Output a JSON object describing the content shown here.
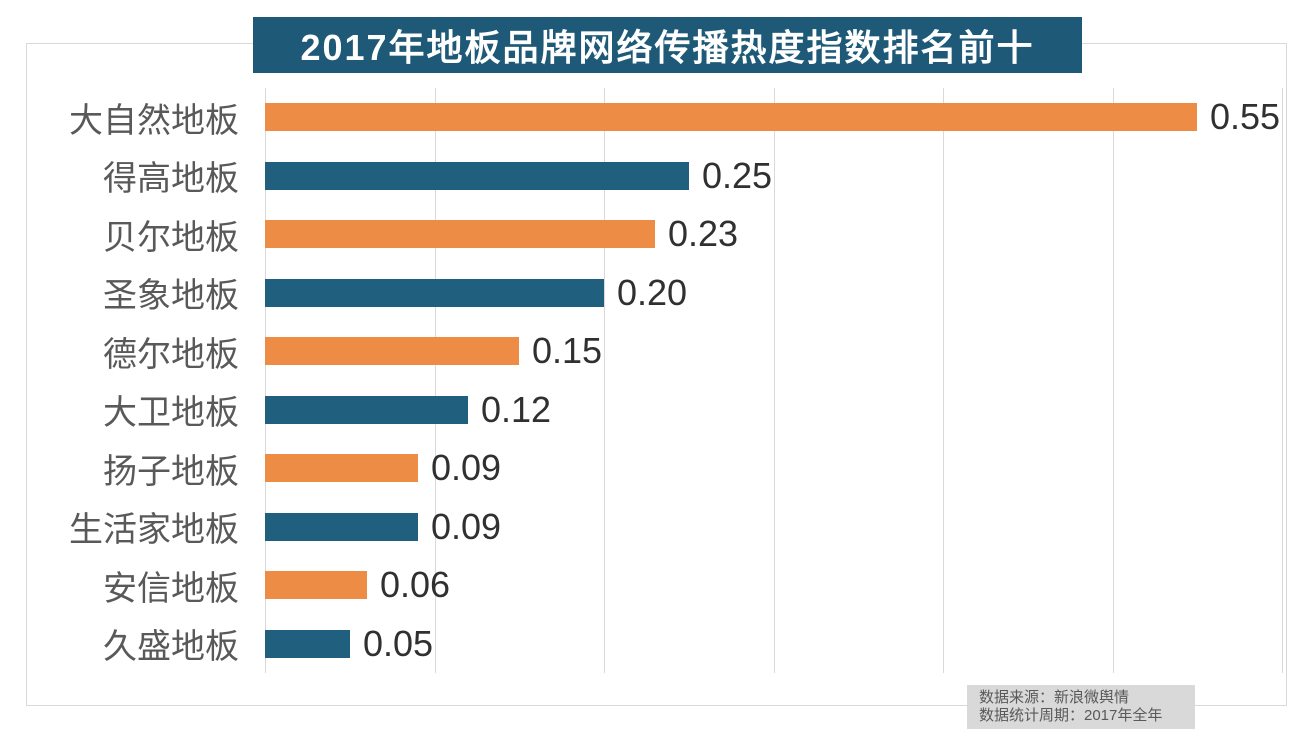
{
  "chart_data": {
    "type": "bar",
    "orientation": "horizontal",
    "title": "2017年地板品牌网络传播热度指数排名前十",
    "categories": [
      "大自然地板",
      "得高地板",
      "贝尔地板",
      "圣象地板",
      "德尔地板",
      "大卫地板",
      "扬子地板",
      "生活家地板",
      "安信地板",
      "久盛地板"
    ],
    "values": [
      0.55,
      0.25,
      0.23,
      0.2,
      0.15,
      0.12,
      0.09,
      0.09,
      0.06,
      0.05
    ],
    "value_labels": [
      "0.55",
      "0.25",
      "0.23",
      "0.20",
      "0.15",
      "0.12",
      "0.09",
      "0.09",
      "0.06",
      "0.05"
    ],
    "xlim": [
      0,
      0.6
    ],
    "grid_interval": 0.1,
    "grid": true,
    "legend": "none",
    "axis_tick_labels_shown": false,
    "bar_colors_alternate": [
      "#ED8C44",
      "#20607E"
    ]
  },
  "source_note": {
    "line1": "数据来源：新浪微舆情",
    "line2": "数据统计周期：2017年全年"
  },
  "colors": {
    "background": "#FFFFFF",
    "title_bg": "#1E5A78",
    "title_text": "#FFFFFF",
    "orange_bar": "#ED8C44",
    "teal_bar": "#20607E",
    "gridline": "#D9D9D9",
    "chart_border": "#D9D9D9",
    "category_text": "#595959",
    "value_text": "#303030",
    "source_bg": "#D9D9D9",
    "source_text": "#595959"
  }
}
